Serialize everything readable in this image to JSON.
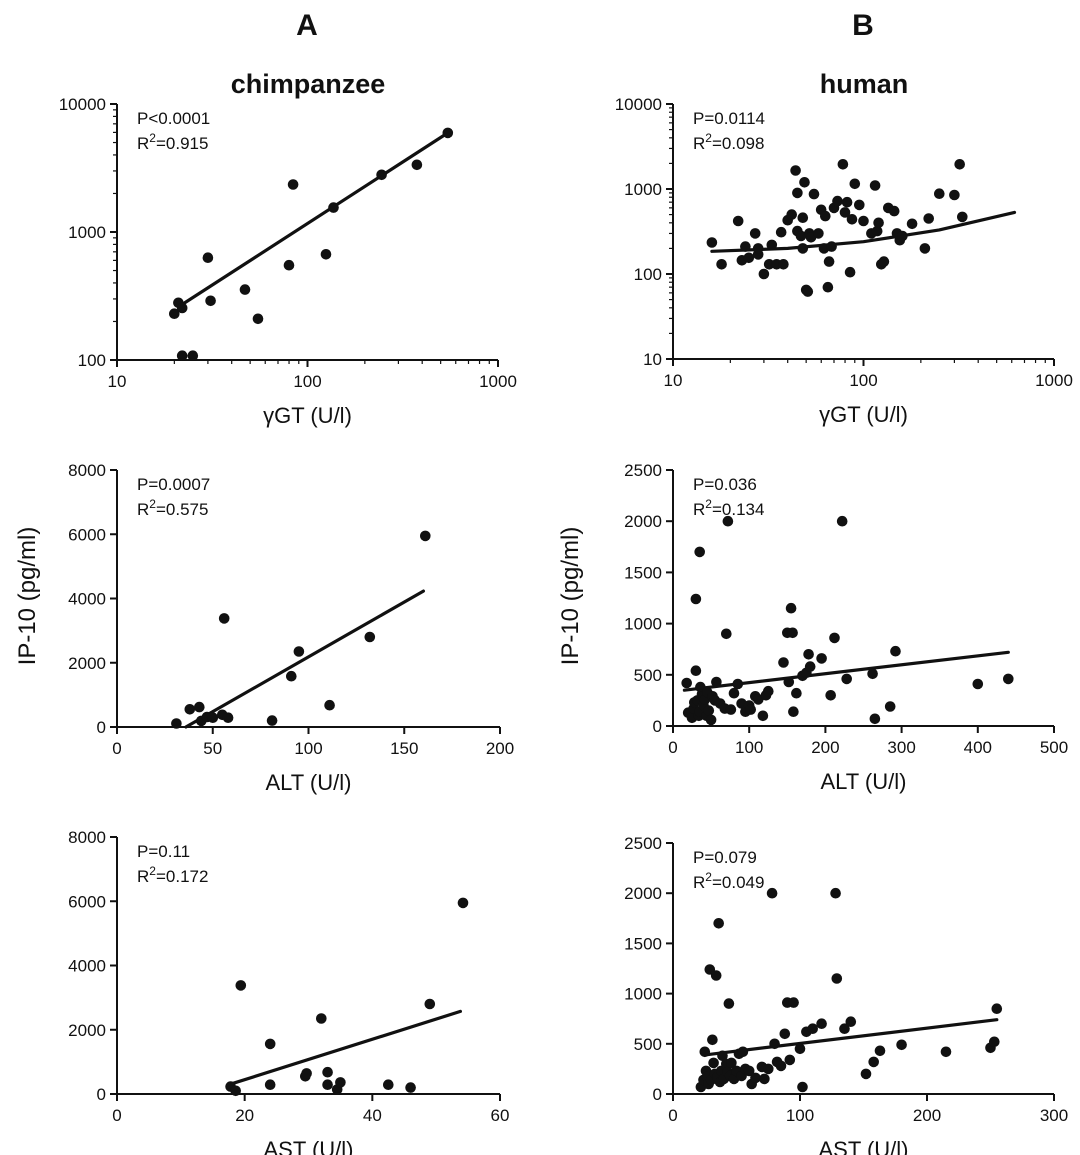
{
  "panel_letters": [
    "A",
    "B"
  ],
  "column_titles": [
    "chimpanzee",
    "human"
  ],
  "ylabel": "IP-10 (pg/ml)",
  "chart_data": [
    {
      "type": "scatter",
      "id": "chimp-ggt",
      "column": 0,
      "row": 0,
      "title": "chimpanzee",
      "xlabel": "γGT (U/l)",
      "ylabel": "",
      "xscale": "log",
      "yscale": "log",
      "xlim": [
        10,
        1000
      ],
      "ylim": [
        100,
        10000
      ],
      "xticks": [
        10,
        100,
        1000
      ],
      "xtick_labels": [
        "10",
        "100",
        "1000"
      ],
      "yticks": [
        100,
        1000,
        10000
      ],
      "ytick_labels": [
        "100",
        "1000",
        "10000"
      ],
      "stats": {
        "p": "P<0.0001",
        "r2_prefix": "R",
        "r2_sup": "2",
        "r2_value": "=0.915"
      },
      "points": [
        [
          20,
          230
        ],
        [
          21,
          280
        ],
        [
          22,
          255
        ],
        [
          22,
          108
        ],
        [
          25,
          108
        ],
        [
          30,
          630
        ],
        [
          31,
          290
        ],
        [
          47,
          355
        ],
        [
          55,
          210
        ],
        [
          80,
          550
        ],
        [
          84,
          2350
        ],
        [
          125,
          670
        ],
        [
          137,
          1550
        ],
        [
          245,
          2800
        ],
        [
          375,
          3350
        ],
        [
          545,
          5950
        ]
      ],
      "fit": [
        [
          21,
          260
        ],
        [
          545,
          5950
        ]
      ],
      "legend": "none",
      "grid": false
    },
    {
      "type": "scatter",
      "id": "human-ggt",
      "column": 1,
      "row": 0,
      "title": "human",
      "xlabel": "γGT (U/l)",
      "ylabel": "",
      "xscale": "log",
      "yscale": "log",
      "xlim": [
        10,
        1000
      ],
      "ylim": [
        10,
        10000
      ],
      "xticks": [
        10,
        100,
        1000
      ],
      "xtick_labels": [
        "10",
        "100",
        "1000"
      ],
      "yticks": [
        10,
        100,
        1000,
        10000
      ],
      "ytick_labels": [
        "10",
        "100",
        "1000",
        "10000"
      ],
      "stats": {
        "p": "P=0.0114",
        "r2_prefix": "R",
        "r2_sup": "2",
        "r2_value": "=0.098"
      },
      "points": [
        [
          16,
          235
        ],
        [
          18,
          130
        ],
        [
          22,
          420
        ],
        [
          23,
          145
        ],
        [
          24,
          210
        ],
        [
          25,
          155
        ],
        [
          27,
          300
        ],
        [
          28,
          170
        ],
        [
          28,
          200
        ],
        [
          30,
          100
        ],
        [
          32,
          130
        ],
        [
          33,
          220
        ],
        [
          35,
          130
        ],
        [
          37,
          310
        ],
        [
          38,
          130
        ],
        [
          40,
          430
        ],
        [
          42,
          500
        ],
        [
          44,
          1650
        ],
        [
          45,
          320
        ],
        [
          45,
          900
        ],
        [
          47,
          280
        ],
        [
          48,
          460
        ],
        [
          48,
          200
        ],
        [
          49,
          1200
        ],
        [
          50,
          65
        ],
        [
          51,
          62
        ],
        [
          52,
          300
        ],
        [
          53,
          270
        ],
        [
          55,
          870
        ],
        [
          58,
          300
        ],
        [
          60,
          570
        ],
        [
          62,
          200
        ],
        [
          63,
          480
        ],
        [
          65,
          70
        ],
        [
          66,
          140
        ],
        [
          68,
          210
        ],
        [
          70,
          600
        ],
        [
          73,
          720
        ],
        [
          78,
          1950
        ],
        [
          80,
          530
        ],
        [
          82,
          700
        ],
        [
          85,
          105
        ],
        [
          87,
          440
        ],
        [
          90,
          1150
        ],
        [
          95,
          650
        ],
        [
          100,
          420
        ],
        [
          110,
          300
        ],
        [
          115,
          1100
        ],
        [
          118,
          320
        ],
        [
          120,
          400
        ],
        [
          124,
          130
        ],
        [
          128,
          140
        ],
        [
          135,
          600
        ],
        [
          145,
          550
        ],
        [
          150,
          300
        ],
        [
          155,
          250
        ],
        [
          160,
          280
        ],
        [
          180,
          390
        ],
        [
          210,
          200
        ],
        [
          220,
          450
        ],
        [
          250,
          880
        ],
        [
          300,
          850
        ],
        [
          320,
          1950
        ],
        [
          330,
          470
        ]
      ],
      "fit": [
        [
          16,
          185
        ],
        [
          40,
          200
        ],
        [
          100,
          240
        ],
        [
          250,
          330
        ],
        [
          620,
          530
        ]
      ],
      "legend": "none",
      "grid": false
    },
    {
      "type": "scatter",
      "id": "chimp-alt",
      "column": 0,
      "row": 1,
      "xlabel": "ALT (U/l)",
      "ylabel": "IP-10 (pg/ml)",
      "xscale": "linear",
      "yscale": "linear",
      "xlim": [
        0,
        200
      ],
      "ylim": [
        0,
        8000
      ],
      "xticks": [
        0,
        50,
        100,
        150,
        200
      ],
      "xtick_labels": [
        "0",
        "50",
        "100",
        "150",
        "200"
      ],
      "yticks": [
        0,
        2000,
        4000,
        6000,
        8000
      ],
      "ytick_labels": [
        "0",
        "2000",
        "4000",
        "6000",
        "8000"
      ],
      "stats": {
        "p": "P=0.0007",
        "r2_prefix": "R",
        "r2_sup": "2",
        "r2_value": "=0.575"
      },
      "points": [
        [
          31,
          110
        ],
        [
          38,
          550
        ],
        [
          43,
          620
        ],
        [
          44,
          190
        ],
        [
          47,
          310
        ],
        [
          50,
          290
        ],
        [
          55,
          380
        ],
        [
          56,
          3380
        ],
        [
          58,
          290
        ],
        [
          81,
          200
        ],
        [
          91,
          1580
        ],
        [
          95,
          2350
        ],
        [
          111,
          680
        ],
        [
          132,
          2800
        ],
        [
          161,
          5950
        ]
      ],
      "fit": [
        [
          36,
          0
        ],
        [
          160,
          4230
        ]
      ],
      "legend": "none",
      "grid": false
    },
    {
      "type": "scatter",
      "id": "human-alt",
      "column": 1,
      "row": 1,
      "xlabel": "ALT (U/l)",
      "ylabel": "IP-10 (pg/ml)",
      "xscale": "linear",
      "yscale": "linear",
      "xlim": [
        0,
        500
      ],
      "ylim": [
        0,
        2500
      ],
      "xticks": [
        0,
        100,
        200,
        300,
        400,
        500
      ],
      "xtick_labels": [
        "0",
        "100",
        "200",
        "300",
        "400",
        "500"
      ],
      "yticks": [
        0,
        500,
        1000,
        1500,
        2000,
        2500
      ],
      "ytick_labels": [
        "0",
        "500",
        "1000",
        "1500",
        "2000",
        "2500"
      ],
      "stats": {
        "p": "P=0.036",
        "r2_prefix": "R",
        "r2_sup": "2",
        "r2_value": "=0.134"
      },
      "points": [
        [
          18,
          420
        ],
        [
          20,
          130
        ],
        [
          24,
          120
        ],
        [
          25,
          80
        ],
        [
          27,
          170
        ],
        [
          28,
          230
        ],
        [
          30,
          1240
        ],
        [
          30,
          540
        ],
        [
          32,
          250
        ],
        [
          34,
          100
        ],
        [
          35,
          1700
        ],
        [
          35,
          140
        ],
        [
          36,
          380
        ],
        [
          38,
          310
        ],
        [
          40,
          290
        ],
        [
          40,
          200
        ],
        [
          42,
          260
        ],
        [
          44,
          100
        ],
        [
          45,
          330
        ],
        [
          47,
          150
        ],
        [
          50,
          60
        ],
        [
          52,
          290
        ],
        [
          55,
          250
        ],
        [
          57,
          430
        ],
        [
          62,
          220
        ],
        [
          68,
          170
        ],
        [
          70,
          900
        ],
        [
          72,
          2000
        ],
        [
          76,
          160
        ],
        [
          80,
          320
        ],
        [
          85,
          410
        ],
        [
          90,
          220
        ],
        [
          95,
          140
        ],
        [
          100,
          200
        ],
        [
          102,
          160
        ],
        [
          108,
          290
        ],
        [
          112,
          260
        ],
        [
          118,
          100
        ],
        [
          122,
          300
        ],
        [
          125,
          340
        ],
        [
          145,
          620
        ],
        [
          150,
          910
        ],
        [
          152,
          430
        ],
        [
          155,
          1150
        ],
        [
          157,
          910
        ],
        [
          158,
          140
        ],
        [
          162,
          320
        ],
        [
          170,
          490
        ],
        [
          175,
          520
        ],
        [
          178,
          700
        ],
        [
          180,
          580
        ],
        [
          195,
          660
        ],
        [
          207,
          300
        ],
        [
          212,
          860
        ],
        [
          222,
          2000
        ],
        [
          228,
          460
        ],
        [
          262,
          510
        ],
        [
          265,
          70
        ],
        [
          285,
          190
        ],
        [
          292,
          730
        ],
        [
          400,
          410
        ],
        [
          440,
          460
        ]
      ],
      "fit": [
        [
          15,
          350
        ],
        [
          440,
          720
        ]
      ],
      "legend": "none",
      "grid": false
    },
    {
      "type": "scatter",
      "id": "chimp-ast",
      "column": 0,
      "row": 2,
      "xlabel": "AST (U/l)",
      "ylabel": "IP-10 (pg/ml)",
      "xscale": "linear",
      "yscale": "linear",
      "xlim": [
        0,
        60
      ],
      "ylim": [
        0,
        8000
      ],
      "xticks": [
        0,
        20,
        40,
        60
      ],
      "xtick_labels": [
        "0",
        "20",
        "40",
        "60"
      ],
      "yticks": [
        0,
        2000,
        4000,
        6000,
        8000
      ],
      "ytick_labels": [
        "0",
        "2000",
        "4000",
        "6000",
        "8000"
      ],
      "stats": {
        "p": "P=0.11",
        "r2_prefix": "R",
        "r2_sup": "2",
        "r2_value": "=0.172"
      },
      "points": [
        [
          17.8,
          230
        ],
        [
          18.6,
          100
        ],
        [
          19.4,
          3380
        ],
        [
          24,
          1560
        ],
        [
          24,
          290
        ],
        [
          29.5,
          550
        ],
        [
          29.7,
          640
        ],
        [
          32,
          2350
        ],
        [
          33,
          290
        ],
        [
          33,
          680
        ],
        [
          34.5,
          140
        ],
        [
          35,
          360
        ],
        [
          42.5,
          290
        ],
        [
          46,
          200
        ],
        [
          49,
          2800
        ],
        [
          54.2,
          5950
        ]
      ],
      "fit": [
        [
          18,
          320
        ],
        [
          53.8,
          2570
        ]
      ],
      "legend": "none",
      "grid": false
    },
    {
      "type": "scatter",
      "id": "human-ast",
      "column": 1,
      "row": 2,
      "xlabel": "AST (U/l)",
      "ylabel": "IP-10 (pg/ml)",
      "xscale": "linear",
      "yscale": "linear",
      "xlim": [
        0,
        300
      ],
      "ylim": [
        0,
        2500
      ],
      "xticks": [
        0,
        100,
        200,
        300
      ],
      "xtick_labels": [
        "0",
        "100",
        "200",
        "300"
      ],
      "yticks": [
        0,
        500,
        1000,
        1500,
        2000,
        2500
      ],
      "ytick_labels": [
        "0",
        "500",
        "1000",
        "1500",
        "2000",
        "2500"
      ],
      "stats": {
        "p": "P=0.079",
        "r2_prefix": "R",
        "r2_sup": "2",
        "r2_value": "=0.049"
      },
      "points": [
        [
          22,
          70
        ],
        [
          24,
          140
        ],
        [
          25,
          420
        ],
        [
          26,
          230
        ],
        [
          27,
          170
        ],
        [
          28,
          100
        ],
        [
          29,
          1240
        ],
        [
          30,
          140
        ],
        [
          31,
          540
        ],
        [
          32,
          310
        ],
        [
          33,
          200
        ],
        [
          34,
          1180
        ],
        [
          35,
          170
        ],
        [
          36,
          1700
        ],
        [
          37,
          120
        ],
        [
          38,
          230
        ],
        [
          39,
          380
        ],
        [
          40,
          150
        ],
        [
          42,
          300
        ],
        [
          43,
          220
        ],
        [
          44,
          900
        ],
        [
          45,
          180
        ],
        [
          46,
          310
        ],
        [
          48,
          150
        ],
        [
          50,
          230
        ],
        [
          52,
          400
        ],
        [
          54,
          180
        ],
        [
          55,
          420
        ],
        [
          57,
          250
        ],
        [
          60,
          230
        ],
        [
          62,
          100
        ],
        [
          65,
          160
        ],
        [
          70,
          270
        ],
        [
          72,
          150
        ],
        [
          75,
          250
        ],
        [
          78,
          2000
        ],
        [
          80,
          500
        ],
        [
          82,
          320
        ],
        [
          85,
          280
        ],
        [
          88,
          600
        ],
        [
          90,
          910
        ],
        [
          92,
          340
        ],
        [
          95,
          910
        ],
        [
          100,
          450
        ],
        [
          102,
          70
        ],
        [
          105,
          620
        ],
        [
          110,
          650
        ],
        [
          117,
          700
        ],
        [
          128,
          2000
        ],
        [
          129,
          1150
        ],
        [
          135,
          650
        ],
        [
          140,
          720
        ],
        [
          152,
          200
        ],
        [
          158,
          320
        ],
        [
          163,
          430
        ],
        [
          180,
          490
        ],
        [
          215,
          420
        ],
        [
          250,
          460
        ],
        [
          253,
          520
        ],
        [
          255,
          850
        ]
      ],
      "fit": [
        [
          26,
          390
        ],
        [
          255,
          740
        ]
      ],
      "legend": "none",
      "grid": false
    }
  ]
}
